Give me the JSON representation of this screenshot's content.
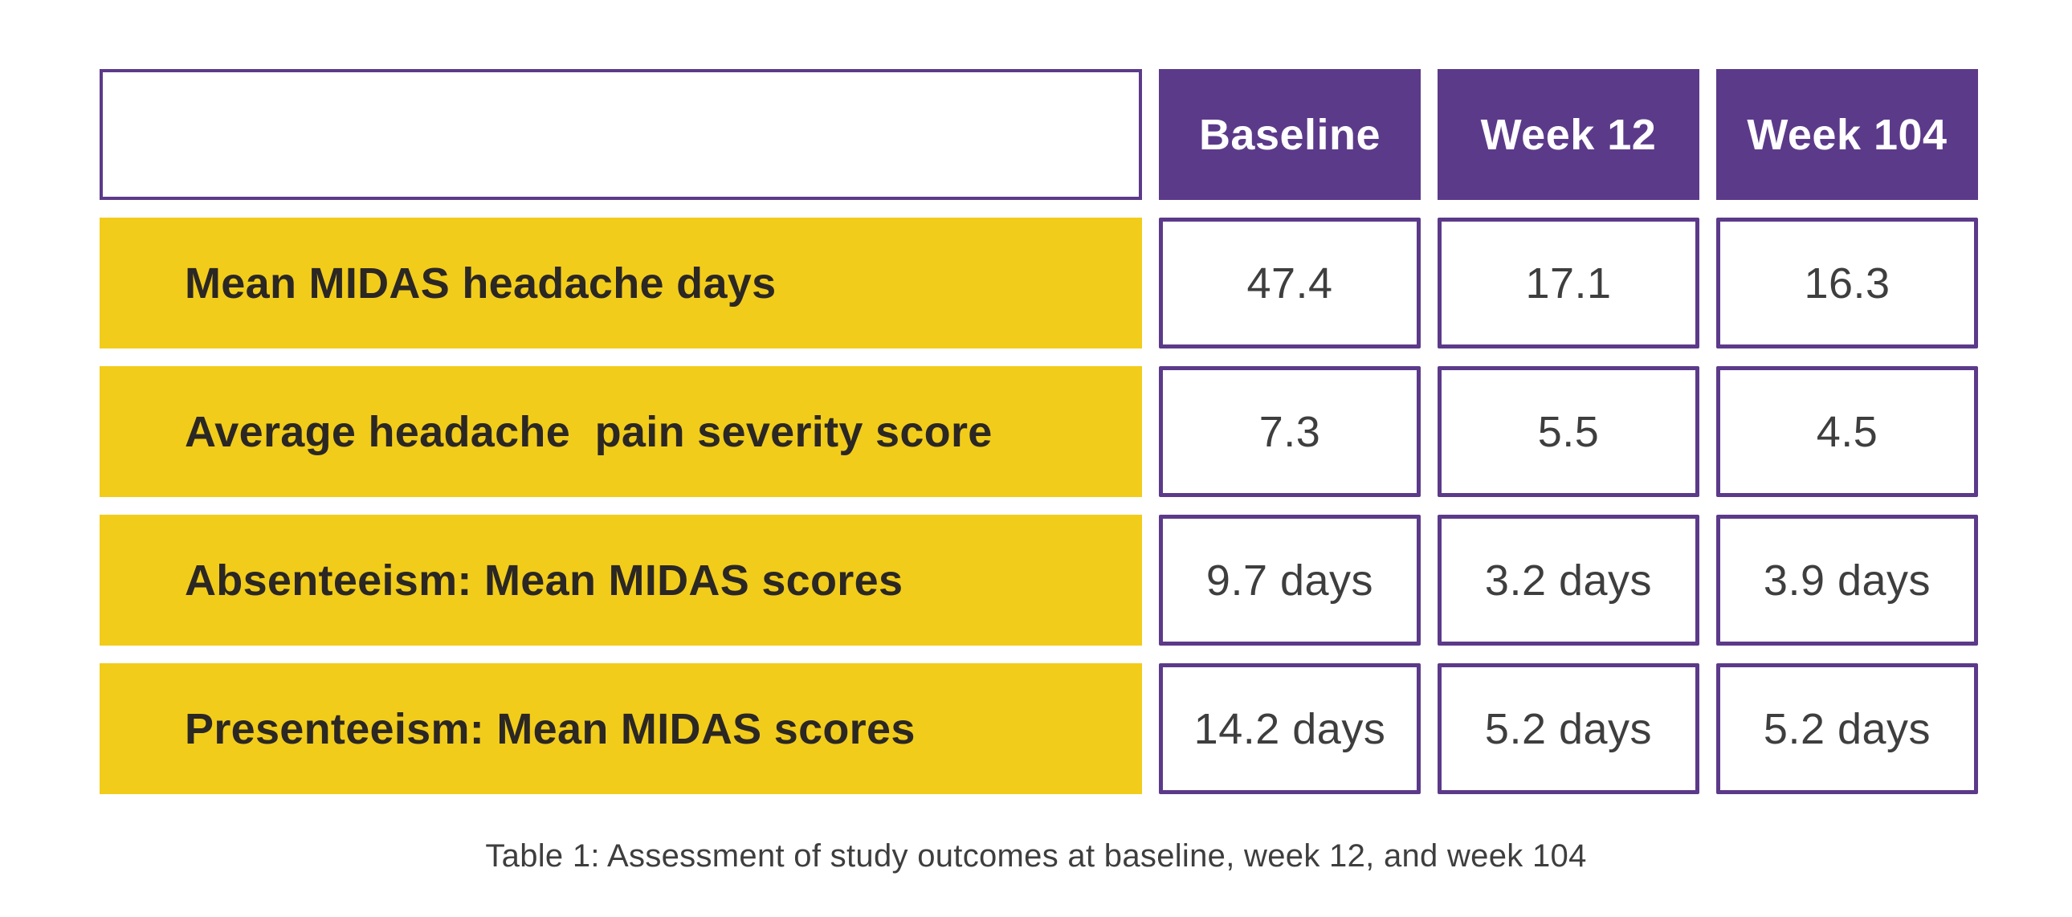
{
  "chart_data": {
    "type": "table",
    "title": "Table 1: Assessment of study outcomes at baseline, week 12, and week 104",
    "columns": [
      "",
      "Baseline",
      "Week 12",
      "Week 104"
    ],
    "rows": [
      [
        "Mean MIDAS headache days",
        "47.4",
        "17.1",
        "16.3"
      ],
      [
        "Average headache  pain severity score",
        "7.3",
        "5.5",
        "4.5"
      ],
      [
        "Absenteeism: Mean MIDAS scores",
        "9.7 days",
        "3.2 days",
        "3.9 days"
      ],
      [
        "Presenteeism: Mean MIDAS scores",
        "14.2 days",
        "5.2 days",
        "5.2 days"
      ]
    ],
    "layout_hints": {
      "header_fill": "purple",
      "row_label_fill": "yellow",
      "value_cells": "white with purple border",
      "caption_position": "bottom-center"
    }
  },
  "colors": {
    "purple": "#5C3A8A",
    "yellow": "#F2CC1A",
    "label-text": "#2B2724",
    "value-text": "#3E3E3E",
    "header-text": "#FFFFFF",
    "background": "#FFFFFF"
  }
}
